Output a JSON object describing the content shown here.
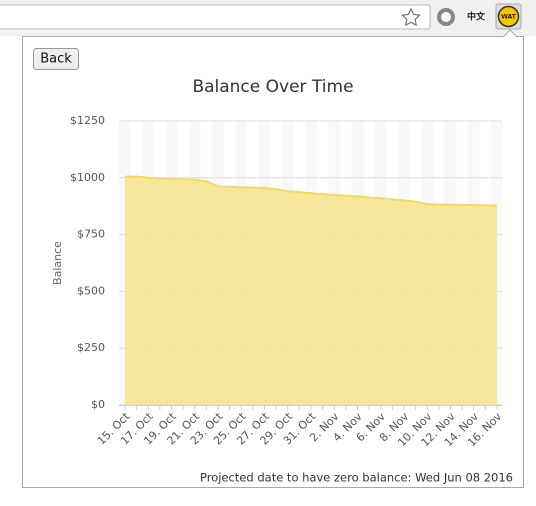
{
  "toolbar": {
    "translate_icon_label": "中文",
    "extension_label": "WAT"
  },
  "popup": {
    "back_button": "Back",
    "footer": "Projected date to have zero balance: Wed Jun 08 2016"
  },
  "chart_data": {
    "type": "area",
    "title": "Balance Over Time",
    "y_label": "Balance",
    "categories": [
      "15. Oct",
      null,
      "17. Oct",
      null,
      "19. Oct",
      null,
      "21. Oct",
      null,
      "23. Oct",
      null,
      "25. Oct",
      null,
      "27. Oct",
      null,
      "29. Oct",
      null,
      "31. Oct",
      null,
      "2. Nov",
      null,
      "4. Nov",
      null,
      "6. Nov",
      null,
      "8. Nov",
      null,
      "10. Nov",
      null,
      "12. Nov",
      null,
      "14. Nov",
      null,
      "16. Nov"
    ],
    "series": [
      {
        "name": "Balance",
        "color": "#f7e38a",
        "values": [
          1005,
          1005,
          1000,
          997,
          995,
          993,
          992,
          985,
          962,
          960,
          958,
          957,
          955,
          950,
          940,
          937,
          932,
          928,
          924,
          921,
          918,
          914,
          910,
          905,
          900,
          895,
          884,
          882,
          882,
          881,
          880,
          879,
          877
        ]
      }
    ],
    "ylim": [
      0,
      1250
    ],
    "yticks": [
      {
        "value": 0,
        "label": "$0"
      },
      {
        "value": 250,
        "label": "$250"
      },
      {
        "value": 500,
        "label": "$500"
      },
      {
        "value": 750,
        "label": "$750"
      },
      {
        "value": 1000,
        "label": "$1000"
      },
      {
        "value": 1250,
        "label": "$1250"
      }
    ],
    "grid": true
  }
}
